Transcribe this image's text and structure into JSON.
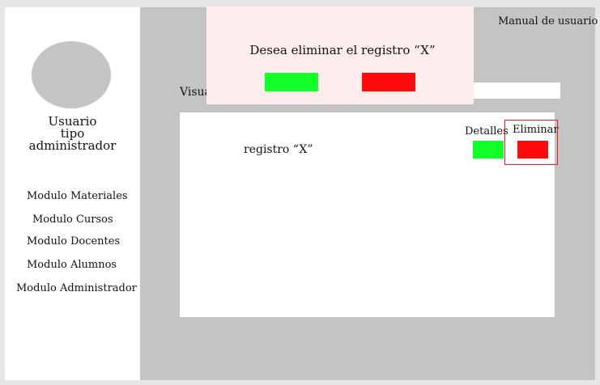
{
  "sidebar": {
    "user_label": "Usuario\ntipo\nadministrador",
    "items": [
      {
        "label": "Modulo Materiales"
      },
      {
        "label": "Modulo Cursos"
      },
      {
        "label": "Modulo Docentes"
      },
      {
        "label": "Modulo Alumnos"
      },
      {
        "label": "Modulo Administrador"
      }
    ]
  },
  "header": {
    "manual_label": "Manual de usuario"
  },
  "main": {
    "section_title_visible": "Visua",
    "record": {
      "label": "registro “X”",
      "details_label": "Detalles",
      "delete_label": "Eliminar"
    }
  },
  "modal": {
    "message": "Desea eliminar el registro “X”"
  },
  "colors": {
    "confirm": "#12ff2a",
    "cancel": "#ff0a0a",
    "highlight": "#e02020",
    "modal_bg": "#fdeded",
    "workspace_bg": "#c4c4c4"
  }
}
